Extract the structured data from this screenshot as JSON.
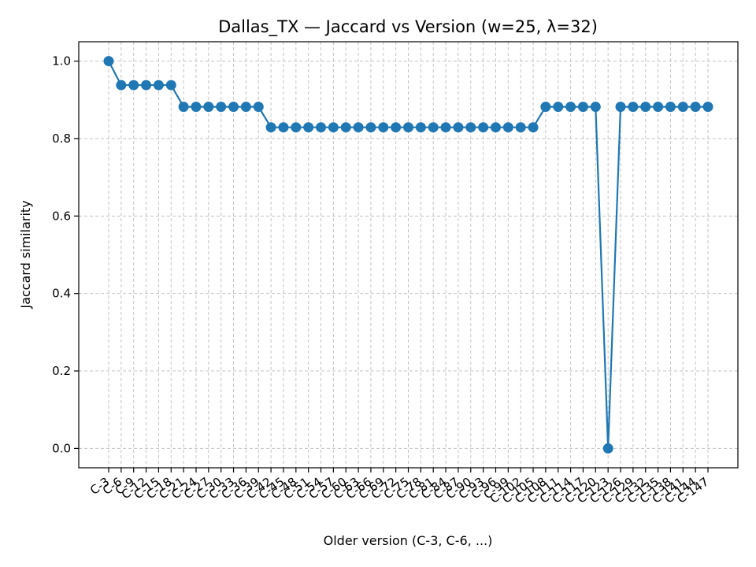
{
  "chart_data": {
    "type": "line",
    "title": "Dallas_TX — Jaccard vs Version (w=25, λ=32)",
    "xlabel": "Older version (C-3, C-6, ...)",
    "ylabel": "Jaccard similarity",
    "ylim": [
      -0.05,
      1.05
    ],
    "yticks": [
      0.0,
      0.2,
      0.4,
      0.6,
      0.8,
      1.0
    ],
    "ytick_labels": [
      "0.0",
      "0.2",
      "0.4",
      "0.6",
      "0.8",
      "1.0"
    ],
    "grid": true,
    "categories": [
      "C-3",
      "C-6",
      "C-9",
      "C-12",
      "C-15",
      "C-18",
      "C-21",
      "C-24",
      "C-27",
      "C-30",
      "C-33",
      "C-36",
      "C-39",
      "C-42",
      "C-45",
      "C-48",
      "C-51",
      "C-54",
      "C-57",
      "C-60",
      "C-63",
      "C-66",
      "C-69",
      "C-72",
      "C-75",
      "C-78",
      "C-81",
      "C-84",
      "C-87",
      "C-90",
      "C-93",
      "C-96",
      "C-99",
      "C-102",
      "C-105",
      "C-108",
      "C-111",
      "C-114",
      "C-117",
      "C-120",
      "C-123",
      "C-126",
      "C-129",
      "C-132",
      "C-135",
      "C-138",
      "C-141",
      "C-144",
      "C-147"
    ],
    "values": [
      1.0,
      0.938,
      0.938,
      0.938,
      0.938,
      0.938,
      0.882,
      0.882,
      0.882,
      0.882,
      0.882,
      0.882,
      0.882,
      0.829,
      0.829,
      0.829,
      0.829,
      0.829,
      0.829,
      0.829,
      0.829,
      0.829,
      0.829,
      0.829,
      0.829,
      0.829,
      0.829,
      0.829,
      0.829,
      0.829,
      0.829,
      0.829,
      0.829,
      0.829,
      0.829,
      0.882,
      0.882,
      0.882,
      0.882,
      0.882,
      0.0,
      0.882,
      0.882,
      0.882,
      0.882,
      0.882,
      0.882,
      0.882,
      0.882
    ],
    "series_color": "#1f77b4"
  }
}
